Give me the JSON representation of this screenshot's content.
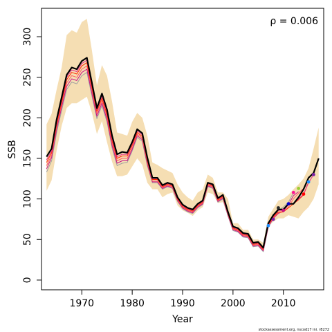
{
  "chart_data": {
    "type": "line",
    "xlabel": "Year",
    "ylabel": "SSB",
    "annotation": "ρ = 0.006",
    "footer": "stockassessment.org, nscod17 ini. r8272",
    "xlim": [
      1962,
      2018
    ],
    "ylim": [
      -12,
      335
    ],
    "x_ticks": [
      1970,
      1980,
      1990,
      2000,
      2010
    ],
    "y_ticks": [
      0,
      50,
      100,
      150,
      200,
      250,
      300
    ],
    "grid": false,
    "legend": "none",
    "colors": {
      "band": "#f5deb3",
      "main": "#000000",
      "peels": [
        "#e7298a",
        "#ff2a00",
        "#ff5a60",
        "#c71585",
        "#a0a0a0"
      ],
      "points": [
        "#7b1fa2",
        "#1e90ff",
        "#ff0000",
        "#9acd32",
        "#ff1493",
        "#0000cd",
        "#c71585",
        "#2a2a2a"
      ]
    },
    "confidence_band": {
      "years": [
        1963,
        1964,
        1965,
        1966,
        1967,
        1968,
        1969,
        1970,
        1971,
        1972,
        1973,
        1974,
        1975,
        1976,
        1977,
        1978,
        1979,
        1980,
        1981,
        1982,
        1983,
        1984,
        1985,
        1986,
        1987,
        1988,
        1989,
        1990,
        1991,
        1992,
        1993,
        1994,
        1995,
        1996,
        1997,
        1998,
        1999,
        2000,
        2001,
        2002,
        2003,
        2004,
        2005,
        2006,
        2007,
        2008,
        2009,
        2010,
        2011,
        2012,
        2013,
        2014,
        2015,
        2016,
        2017
      ],
      "lower": [
        110,
        123,
        160,
        190,
        212,
        218,
        218,
        222,
        226,
        206,
        180,
        196,
        170,
        146,
        128,
        128,
        130,
        140,
        150,
        142,
        120,
        112,
        112,
        102,
        106,
        108,
        92,
        86,
        83,
        79,
        86,
        90,
        108,
        106,
        95,
        96,
        78,
        62,
        60,
        54,
        52,
        42,
        44,
        36,
        66,
        72,
        76,
        76,
        80,
        78,
        76,
        84,
        90,
        100,
        118
      ],
      "upper": [
        192,
        205,
        235,
        262,
        302,
        308,
        305,
        318,
        322,
        283,
        240,
        265,
        252,
        220,
        182,
        180,
        178,
        195,
        206,
        200,
        178,
        145,
        142,
        138,
        135,
        132,
        118,
        108,
        102,
        98,
        108,
        112,
        130,
        126,
        108,
        108,
        100,
        70,
        70,
        62,
        62,
        50,
        50,
        46,
        78,
        88,
        98,
        100,
        105,
        112,
        118,
        125,
        138,
        162,
        188
      ]
    },
    "series": [
      {
        "years": [
          1963,
          1964,
          1965,
          1966,
          1967,
          1968,
          1969,
          1970,
          1971,
          1972,
          1973,
          1974,
          1975,
          1976,
          1977,
          1978,
          1979,
          1980,
          1981,
          1982,
          1983,
          1984,
          1985,
          1986,
          1987,
          1988,
          1989,
          1990,
          1991,
          1992,
          1993,
          1994,
          1995,
          1996,
          1997,
          1998,
          1999,
          2000,
          2001,
          2002,
          2003,
          2004,
          2005,
          2006,
          2007,
          2008,
          2009,
          2010,
          2011,
          2012,
          2013,
          2014,
          2015,
          2016,
          2017
        ],
        "values": [
          152,
          162,
          198,
          225,
          253,
          262,
          260,
          270,
          274,
          243,
          212,
          230,
          210,
          178,
          155,
          158,
          157,
          170,
          186,
          181,
          151,
          126,
          126,
          117,
          120,
          118,
          102,
          93,
          89,
          87,
          94,
          98,
          120,
          118,
          101,
          105,
          84,
          66,
          64,
          58,
          57,
          46,
          47,
          40,
          70,
          80,
          87,
          87,
          94,
          94,
          102,
          112,
          126,
          132,
          150
        ]
      },
      {
        "years": [
          1963,
          1964,
          1965,
          1966,
          1967,
          1968,
          1969,
          1970,
          1971,
          1972,
          1973,
          1974,
          1975,
          1976,
          1977,
          1978,
          1979,
          1980,
          1981,
          1982,
          1983,
          1984,
          1985,
          1986,
          1987,
          1988,
          1989,
          1990,
          1991,
          1992,
          1993,
          1994,
          1995,
          1996,
          1997,
          1998,
          1999,
          2000,
          2001,
          2002,
          2003,
          2004,
          2005,
          2006,
          2007,
          2008,
          2009,
          2010,
          2011,
          2012,
          2013,
          2014,
          2015,
          2016
        ],
        "values": [
          148,
          159,
          195,
          222,
          250,
          259,
          257,
          267,
          271,
          240,
          210,
          227,
          207,
          175,
          152,
          155,
          155,
          168,
          184,
          179,
          149,
          125,
          125,
          116,
          119,
          117,
          101,
          92,
          88,
          86,
          93,
          97,
          119,
          117,
          100,
          104,
          83,
          65,
          63,
          57,
          56,
          45,
          46,
          39,
          69,
          79,
          86,
          86,
          93,
          94,
          100,
          106,
          120,
          130
        ]
      },
      {
        "years": [
          1963,
          1964,
          1965,
          1966,
          1967,
          1968,
          1969,
          1970,
          1971,
          1972,
          1973,
          1974,
          1975,
          1976,
          1977,
          1978,
          1979,
          1980,
          1981,
          1982,
          1983,
          1984,
          1985,
          1986,
          1987,
          1988,
          1989,
          1990,
          1991,
          1992,
          1993,
          1994,
          1995,
          1996,
          1997,
          1998,
          1999,
          2000,
          2001,
          2002,
          2003,
          2004,
          2005,
          2006,
          2007,
          2008,
          2009,
          2010,
          2011,
          2012,
          2013,
          2014,
          2015
        ],
        "values": [
          145,
          157,
          192,
          219,
          247,
          256,
          254,
          264,
          268,
          237,
          208,
          224,
          204,
          172,
          150,
          153,
          153,
          166,
          182,
          177,
          147,
          124,
          124,
          115,
          118,
          116,
          100,
          91,
          87,
          85,
          92,
          96,
          118,
          116,
          99,
          103,
          82,
          64,
          62,
          56,
          55,
          44,
          45,
          38,
          68,
          78,
          84,
          84,
          89,
          94,
          99,
          105,
          121
        ]
      },
      {
        "years": [
          1963,
          1964,
          1965,
          1966,
          1967,
          1968,
          1969,
          1970,
          1971,
          1972,
          1973,
          1974,
          1975,
          1976,
          1977,
          1978,
          1979,
          1980,
          1981,
          1982,
          1983,
          1984,
          1985,
          1986,
          1987,
          1988,
          1989,
          1990,
          1991,
          1992,
          1993,
          1994,
          1995,
          1996,
          1997,
          1998,
          1999,
          2000,
          2001,
          2002,
          2003,
          2004,
          2005,
          2006,
          2007,
          2008,
          2009,
          2010,
          2011,
          2012,
          2013,
          2014
        ],
        "values": [
          141,
          154,
          189,
          216,
          243,
          252,
          250,
          260,
          264,
          234,
          205,
          221,
          201,
          169,
          147,
          150,
          150,
          163,
          180,
          175,
          145,
          122,
          122,
          114,
          117,
          115,
          99,
          90,
          86,
          84,
          91,
          95,
          117,
          115,
          98,
          102,
          81,
          63,
          61,
          55,
          54,
          43,
          44,
          37,
          67,
          77,
          83,
          84,
          90,
          100,
          107,
          113
        ]
      },
      {
        "years": [
          1963,
          1964,
          1965,
          1966,
          1967,
          1968,
          1969,
          1970,
          1971,
          1972,
          1973,
          1974,
          1975,
          1976,
          1977,
          1978,
          1979,
          1980,
          1981,
          1982,
          1983,
          1984,
          1985,
          1986,
          1987,
          1988,
          1989,
          1990,
          1991,
          1992,
          1993,
          1994,
          1995,
          1996,
          1997,
          1998,
          1999,
          2000,
          2001,
          2002,
          2003,
          2004,
          2005,
          2006,
          2007,
          2008,
          2009,
          2010,
          2011,
          2012,
          2013
        ],
        "values": [
          137,
          151,
          186,
          213,
          239,
          248,
          246,
          256,
          260,
          230,
          202,
          218,
          198,
          166,
          144,
          147,
          147,
          161,
          178,
          173,
          143,
          121,
          121,
          113,
          116,
          114,
          98,
          89,
          85,
          83,
          90,
          94,
          116,
          114,
          97,
          101,
          80,
          62,
          60,
          54,
          53,
          42,
          43,
          36,
          66,
          76,
          82,
          85,
          93,
          104,
          109
        ]
      },
      {
        "years": [
          1963,
          1964,
          1965,
          1966,
          1967,
          1968,
          1969,
          1970,
          1971,
          1972,
          1973,
          1974,
          1975,
          1976,
          1977,
          1978,
          1979,
          1980,
          1981,
          1982,
          1983,
          1984,
          1985,
          1986,
          1987,
          1988,
          1989,
          1990,
          1991,
          1992,
          1993,
          1994,
          1995,
          1996,
          1997,
          1998,
          1999,
          2000,
          2001,
          2002,
          2003,
          2004,
          2005,
          2006,
          2007,
          2008,
          2009,
          2010,
          2011,
          2012
        ],
        "values": [
          133,
          147,
          182,
          209,
          235,
          244,
          242,
          252,
          256,
          227,
          199,
          215,
          195,
          163,
          141,
          144,
          145,
          159,
          176,
          171,
          141,
          120,
          120,
          112,
          115,
          113,
          97,
          88,
          84,
          82,
          89,
          93,
          115,
          113,
          96,
          100,
          79,
          61,
          59,
          53,
          52,
          41,
          42,
          35,
          65,
          76,
          86,
          90,
          96,
          108
        ]
      }
    ],
    "peel_points": [
      {
        "year": 2016,
        "value": 130
      },
      {
        "year": 2015,
        "value": 121
      },
      {
        "year": 2014,
        "value": 106
      },
      {
        "year": 2013,
        "value": 113
      },
      {
        "year": 2012,
        "value": 108
      },
      {
        "year": 2011,
        "value": 94
      },
      {
        "year": 2010,
        "value": 86
      },
      {
        "year": 2009,
        "value": 89
      },
      {
        "year": 2008,
        "value": 75
      },
      {
        "year": 2007,
        "value": 67
      }
    ]
  }
}
